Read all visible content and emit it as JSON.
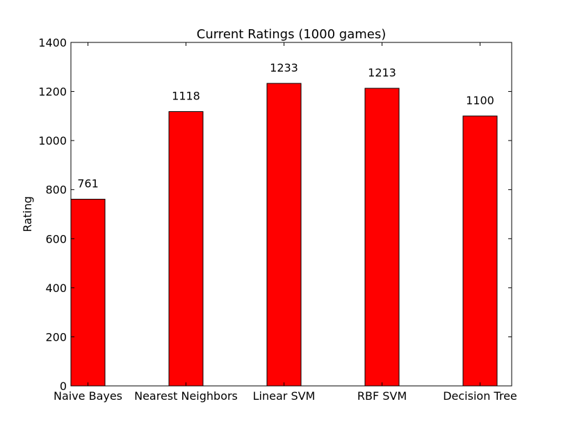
{
  "chart_data": {
    "type": "bar",
    "title": "Current Ratings (1000 games)",
    "xlabel": "",
    "ylabel": "Rating",
    "categories": [
      "Naive Bayes",
      "Nearest Neighbors",
      "Linear SVM",
      "RBF SVM",
      "Decision Tree"
    ],
    "values": [
      761,
      1118,
      1233,
      1213,
      1100
    ],
    "data_labels": [
      "761",
      "1118",
      "1233",
      "1213",
      "1100"
    ],
    "ylim": [
      0,
      1400
    ],
    "yticks": [
      0,
      200,
      400,
      600,
      800,
      1000,
      1200,
      1400
    ],
    "ytick_labels": [
      "0",
      "200",
      "400",
      "600",
      "800",
      "1000",
      "1200",
      "1400"
    ],
    "grid": false,
    "bar_color": "#ff0000",
    "edge_color": "#000000"
  }
}
